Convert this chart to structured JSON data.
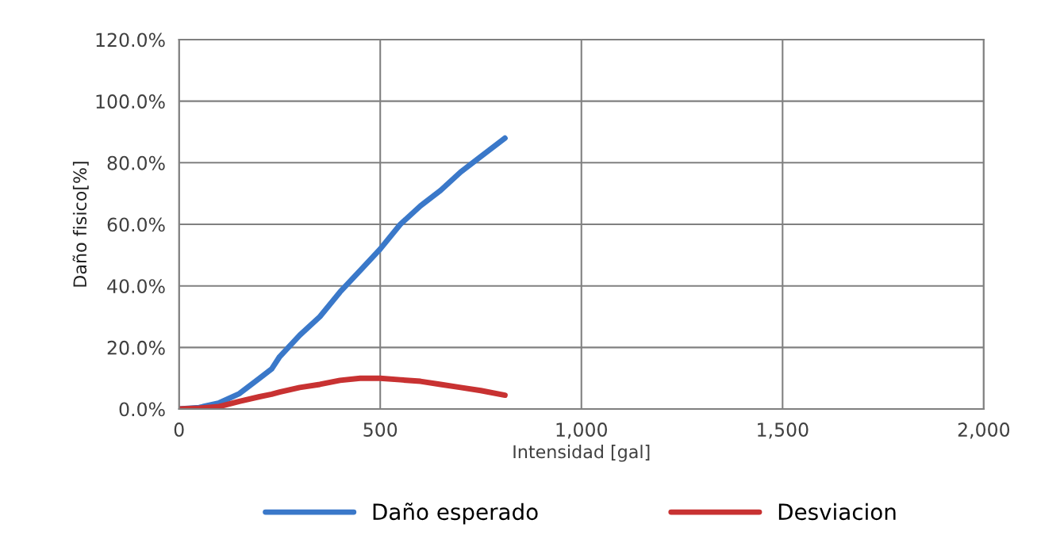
{
  "chart_data": {
    "type": "line",
    "xlabel": "Intensidad [gal]",
    "ylabel": "Daño fisico[%]",
    "x": [
      0,
      50,
      100,
      150,
      200,
      230,
      250,
      300,
      350,
      400,
      450,
      500,
      550,
      600,
      650,
      700,
      750,
      810
    ],
    "series": [
      {
        "name": "Daño esperado",
        "color": "#3a78c9",
        "values": [
          0,
          0.5,
          2,
          5,
          10,
          13,
          17,
          24,
          30,
          38,
          45,
          52,
          60,
          66,
          71,
          77,
          82,
          88
        ]
      },
      {
        "name": "Desviacion",
        "color": "#c83232",
        "values": [
          0,
          0.3,
          0.8,
          2.5,
          4,
          4.8,
          5.5,
          7,
          8,
          9.3,
          10,
          10,
          9.5,
          9,
          8,
          7,
          6,
          4.5
        ]
      }
    ],
    "xlim": [
      0,
      2000
    ],
    "xticks": [
      0,
      500,
      {
        "value": 1000,
        "label": "1,000"
      },
      {
        "value": 1500,
        "label": "1,500"
      },
      {
        "value": 2000,
        "label": "2,000"
      }
    ],
    "ylim": [
      0,
      120
    ],
    "yticks": [
      {
        "value": 0,
        "label": "0.0%"
      },
      {
        "value": 20,
        "label": "20.0%"
      },
      {
        "value": 40,
        "label": "40.0%"
      },
      {
        "value": 60,
        "label": "60.0%"
      },
      {
        "value": 80,
        "label": "80.0%"
      },
      {
        "value": 100,
        "label": "100.0%"
      },
      {
        "value": 120,
        "label": "120.0%"
      }
    ],
    "grid": true,
    "legend": "bottom",
    "marker": "none",
    "line_style": "solid"
  }
}
